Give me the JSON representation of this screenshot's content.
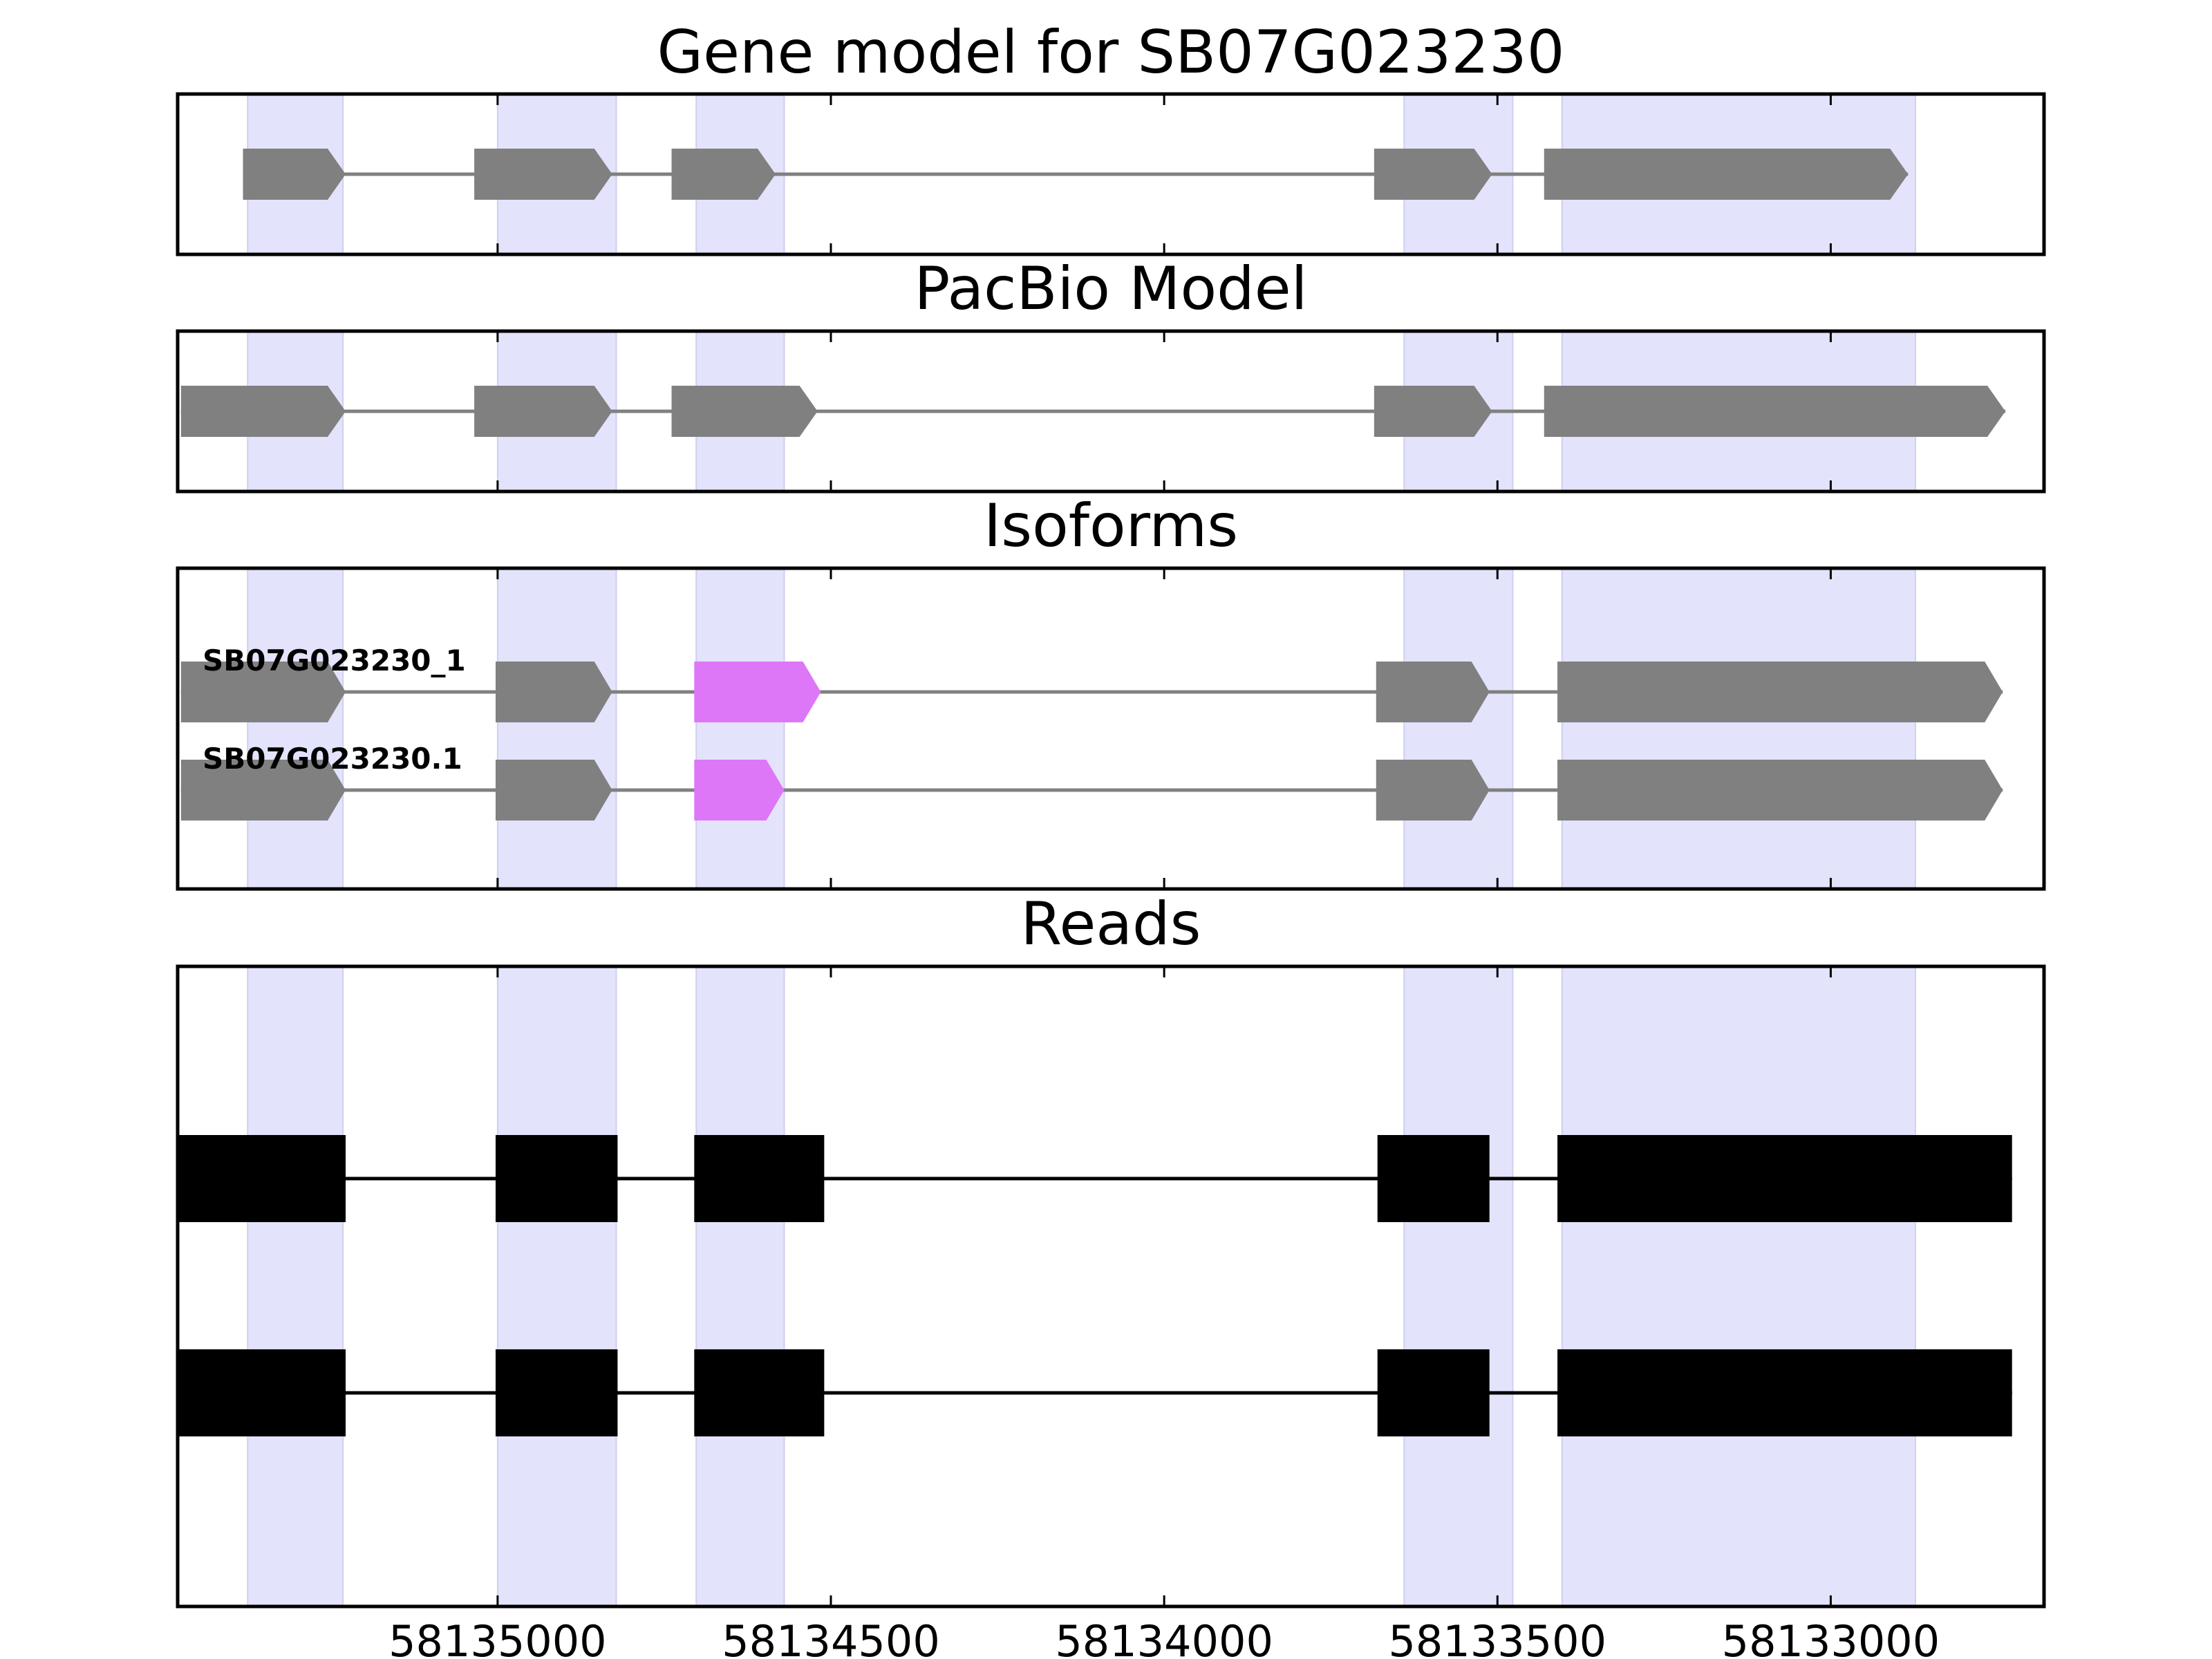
{
  "chart_data": {
    "type": "gene-structure",
    "xlim": [
      58135480,
      58132680
    ],
    "xticks": [
      58135000,
      58134500,
      58134000,
      58133500,
      58133000
    ],
    "shaded_regions": [
      [
        58135375,
        58135232
      ],
      [
        58135000,
        58134822
      ],
      [
        58134702,
        58134570
      ],
      [
        58133640,
        58133477
      ],
      [
        58133403,
        58132873
      ]
    ],
    "colors": {
      "shade": "#e3e3fb",
      "exon": "#808080",
      "highlight": "#dd77f7",
      "read": "#000000",
      "intron": "#808080"
    },
    "panels": [
      {
        "title": "Gene model for SB07G023230",
        "kind": "arrow",
        "tracks": [
          {
            "label": "",
            "exons": [
              [
                58135382,
                58135228
              ],
              [
                58135035,
                58134828
              ],
              [
                58134739,
                58134583
              ],
              [
                58133685,
                58133508
              ],
              [
                58133430,
                58132884
              ]
            ]
          }
        ]
      },
      {
        "title": "PacBio Model",
        "kind": "arrow",
        "tracks": [
          {
            "label": "",
            "exons": [
              [
                58135475,
                58135228
              ],
              [
                58135035,
                58134828
              ],
              [
                58134739,
                58134520
              ],
              [
                58133685,
                58133508
              ],
              [
                58133430,
                58132738
              ]
            ]
          }
        ]
      },
      {
        "title": "Isoforms",
        "kind": "arrow",
        "tracks": [
          {
            "label": "SB07G023230_1",
            "exons": [
              [
                58135475,
                58135228
              ],
              [
                58135003,
                58134828
              ],
              [
                58134705,
                58134515
              ],
              [
                58133682,
                58133512
              ],
              [
                58133410,
                58132742
              ]
            ],
            "highlight": [
              2
            ]
          },
          {
            "label": "SB07G023230.1",
            "exons": [
              [
                58135475,
                58135228
              ],
              [
                58135003,
                58134828
              ],
              [
                58134705,
                58134570
              ],
              [
                58133682,
                58133512
              ],
              [
                58133410,
                58132742
              ]
            ],
            "highlight": [
              2
            ]
          }
        ]
      },
      {
        "title": "Reads",
        "kind": "box",
        "tracks": [
          {
            "label": "",
            "exons": [
              [
                58135482,
                58135228
              ],
              [
                58135003,
                58134820
              ],
              [
                58134705,
                58134510
              ],
              [
                58133680,
                58133512
              ],
              [
                58133410,
                58132728
              ]
            ]
          },
          {
            "label": "",
            "exons": [
              [
                58135482,
                58135228
              ],
              [
                58135003,
                58134820
              ],
              [
                58134705,
                58134510
              ],
              [
                58133680,
                58133512
              ],
              [
                58133410,
                58132728
              ]
            ]
          }
        ]
      }
    ]
  }
}
